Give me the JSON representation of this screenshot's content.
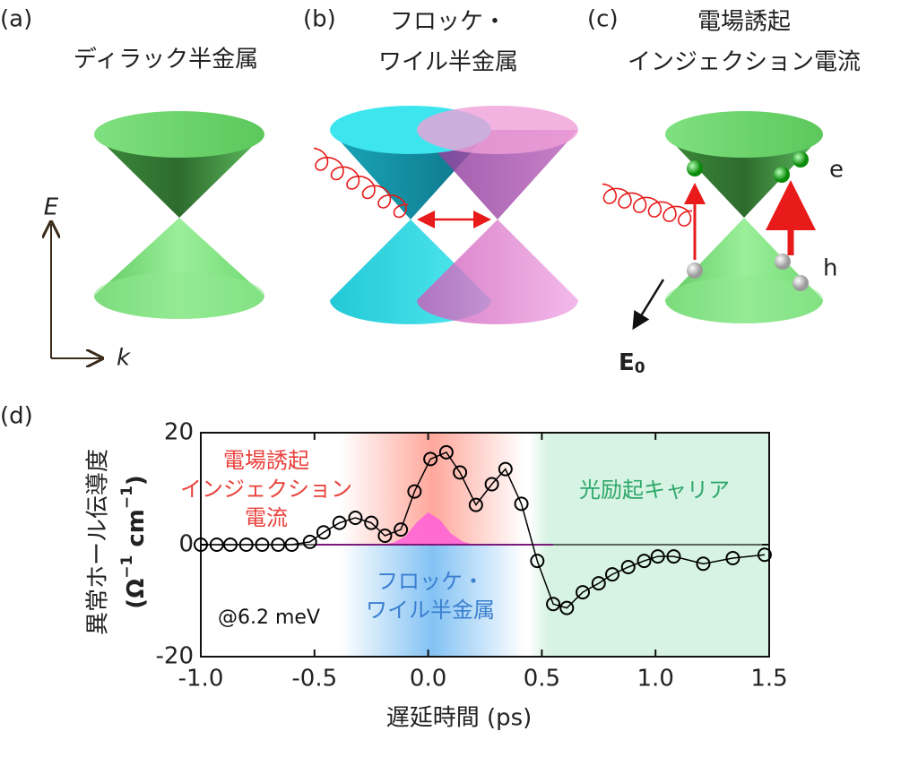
{
  "panels": [
    {
      "label": "(a)",
      "title": [
        "ディラック半金属"
      ],
      "axis_labels": {
        "y": "E",
        "x": "k"
      }
    },
    {
      "label": "(b)",
      "title": [
        "フロッケ・",
        "ワイル半金属"
      ]
    },
    {
      "label": "(c)",
      "title": [
        "電場誘起",
        "インジェクション電流"
      ],
      "annotations": {
        "electron": "e",
        "hole": "h",
        "field": "E",
        "field_sub": "0"
      }
    }
  ],
  "chart_data": {
    "type": "line",
    "label": "(d)",
    "xlabel": "遅延時間 (ps)",
    "ylabel": "異常ホール伝導度",
    "ylabel_unit": [
      "(Ω",
      "−1",
      " cm",
      "−1",
      ")"
    ],
    "xlim": [
      -1.0,
      1.5
    ],
    "ylim": [
      -20,
      20
    ],
    "xticks": [
      {
        "value": -1.0,
        "label": "-1.0"
      },
      -0.5,
      {
        "value": 0.0,
        "label": "0.0"
      },
      0.5,
      {
        "value": 1.0,
        "label": "1.0"
      },
      1.5
    ],
    "yticks": [
      -20,
      0,
      20
    ],
    "series": [
      {
        "color": "#000000",
        "x": [
          -1.0,
          -0.93,
          -0.87,
          -0.8,
          -0.73,
          -0.66,
          -0.6,
          -0.52,
          -0.46,
          -0.39,
          -0.32,
          -0.25,
          -0.19,
          -0.12,
          -0.06,
          0.01,
          0.08,
          0.14,
          0.21,
          0.28,
          0.34,
          0.41,
          0.48,
          0.55,
          0.61,
          0.68,
          0.75,
          0.81,
          0.88,
          0.95,
          1.01,
          1.08,
          1.21,
          1.34,
          1.48
        ],
        "values": [
          0,
          0,
          0,
          0,
          0,
          0,
          0,
          0.5,
          2.2,
          3.9,
          4.8,
          3.9,
          1.6,
          2.7,
          9.5,
          15.3,
          16.5,
          12.9,
          7.1,
          10.8,
          13.5,
          7.3,
          -2.9,
          -10.6,
          -11.3,
          -8.5,
          -6.9,
          -5.3,
          -4.0,
          -2.9,
          -2.1,
          -2.1,
          -3.4,
          -2.4,
          -1.8
        ]
      }
    ],
    "pulse": {
      "color": "#ff5fd8",
      "x": [
        -0.2,
        -0.15,
        -0.1,
        -0.05,
        0,
        0.05,
        0.1,
        0.15,
        0.2
      ],
      "values": [
        0,
        0.4,
        1.5,
        4,
        5.8,
        4.5,
        2,
        0.6,
        0
      ]
    },
    "annotations": [
      {
        "lines": [
          "電場誘起",
          "インジェクション",
          "電流"
        ],
        "color": "#e8413c"
      },
      {
        "lines": [
          "光励起キャリア"
        ],
        "color": "#2fa86a"
      },
      {
        "lines": [
          "フロッケ・",
          "ワイル半金属"
        ],
        "color": "#3a7fd0"
      },
      {
        "lines": [
          "@6.2 meV"
        ],
        "color": "#111111"
      }
    ]
  }
}
